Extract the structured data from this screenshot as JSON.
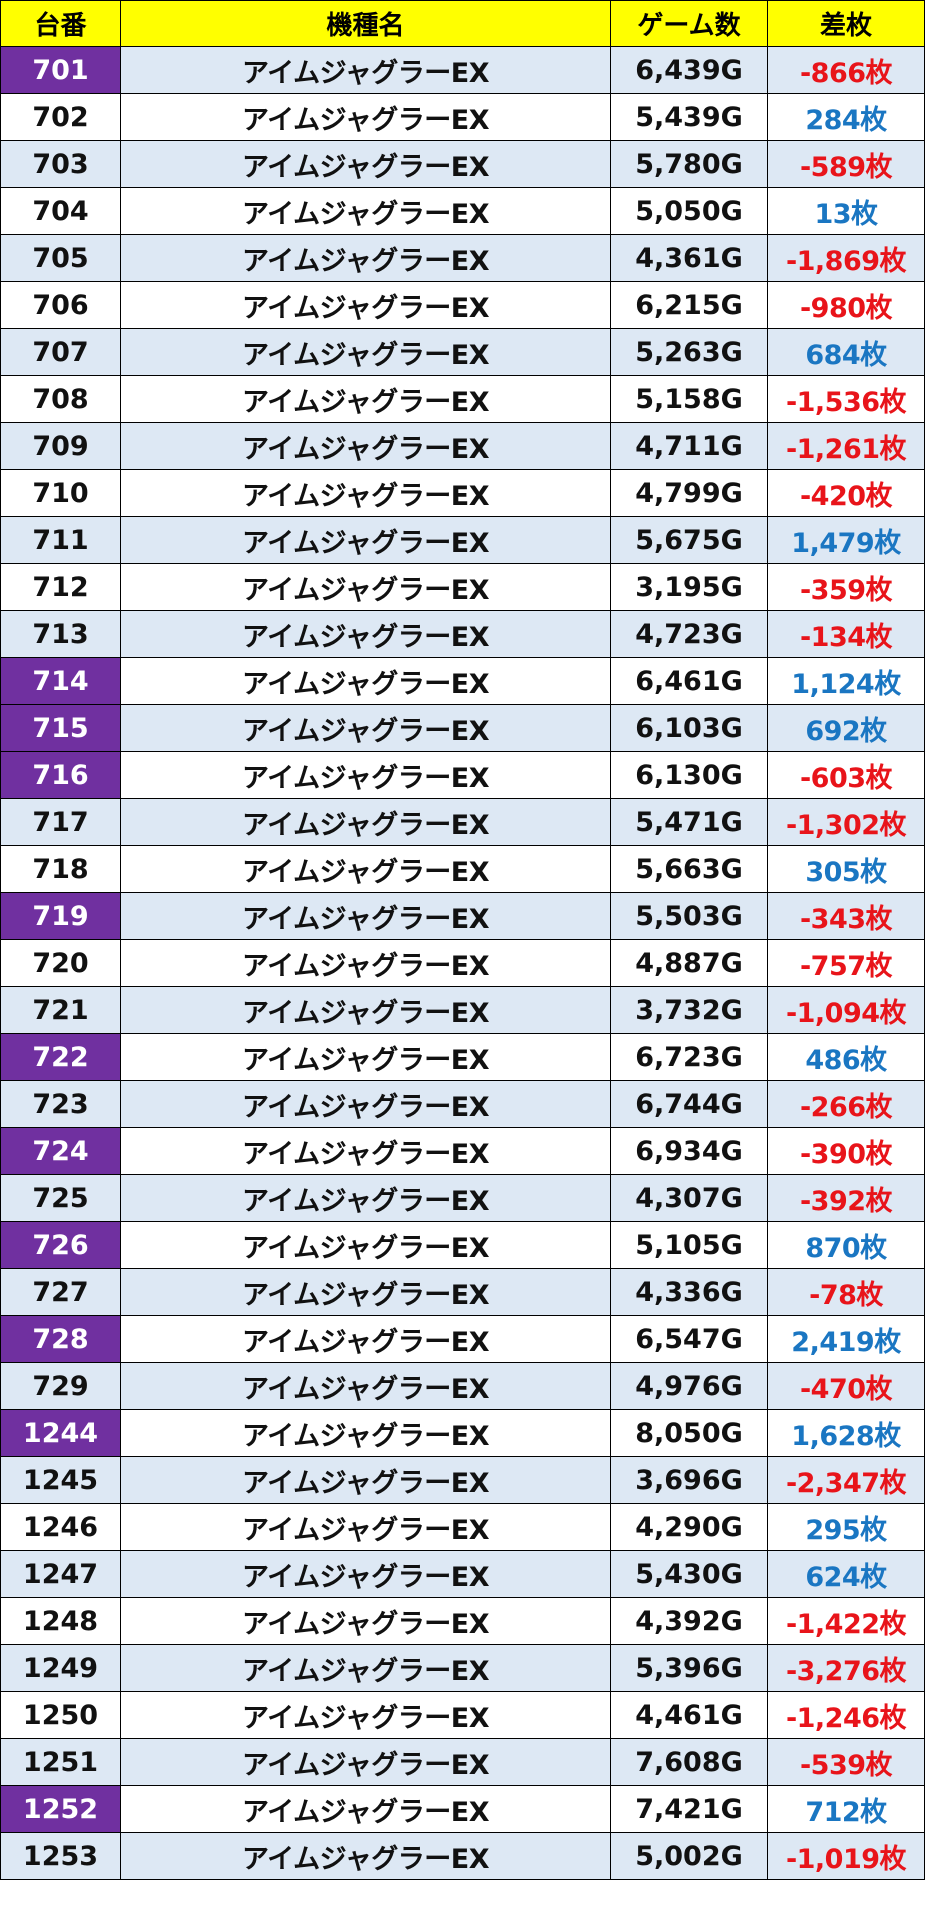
{
  "headers": {
    "machine_no": "台番",
    "model": "機種名",
    "games": "ゲーム数",
    "diff": "差枚"
  },
  "colors": {
    "header_bg": "#ffff00",
    "row_alt_bg": "#dde8f4",
    "highlight_bg": "#7030a0",
    "positive": "#1a76c2",
    "negative": "#e8141a"
  },
  "rows": [
    {
      "no": "701",
      "model": "アイムジャグラーEX",
      "games": "6,439G",
      "diff": "-866枚",
      "highlight": true
    },
    {
      "no": "702",
      "model": "アイムジャグラーEX",
      "games": "5,439G",
      "diff": "284枚",
      "highlight": false
    },
    {
      "no": "703",
      "model": "アイムジャグラーEX",
      "games": "5,780G",
      "diff": "-589枚",
      "highlight": false
    },
    {
      "no": "704",
      "model": "アイムジャグラーEX",
      "games": "5,050G",
      "diff": "13枚",
      "highlight": false
    },
    {
      "no": "705",
      "model": "アイムジャグラーEX",
      "games": "4,361G",
      "diff": "-1,869枚",
      "highlight": false
    },
    {
      "no": "706",
      "model": "アイムジャグラーEX",
      "games": "6,215G",
      "diff": "-980枚",
      "highlight": false
    },
    {
      "no": "707",
      "model": "アイムジャグラーEX",
      "games": "5,263G",
      "diff": "684枚",
      "highlight": false
    },
    {
      "no": "708",
      "model": "アイムジャグラーEX",
      "games": "5,158G",
      "diff": "-1,536枚",
      "highlight": false
    },
    {
      "no": "709",
      "model": "アイムジャグラーEX",
      "games": "4,711G",
      "diff": "-1,261枚",
      "highlight": false
    },
    {
      "no": "710",
      "model": "アイムジャグラーEX",
      "games": "4,799G",
      "diff": "-420枚",
      "highlight": false
    },
    {
      "no": "711",
      "model": "アイムジャグラーEX",
      "games": "5,675G",
      "diff": "1,479枚",
      "highlight": false
    },
    {
      "no": "712",
      "model": "アイムジャグラーEX",
      "games": "3,195G",
      "diff": "-359枚",
      "highlight": false
    },
    {
      "no": "713",
      "model": "アイムジャグラーEX",
      "games": "4,723G",
      "diff": "-134枚",
      "highlight": false
    },
    {
      "no": "714",
      "model": "アイムジャグラーEX",
      "games": "6,461G",
      "diff": "1,124枚",
      "highlight": true
    },
    {
      "no": "715",
      "model": "アイムジャグラーEX",
      "games": "6,103G",
      "diff": "692枚",
      "highlight": true
    },
    {
      "no": "716",
      "model": "アイムジャグラーEX",
      "games": "6,130G",
      "diff": "-603枚",
      "highlight": true
    },
    {
      "no": "717",
      "model": "アイムジャグラーEX",
      "games": "5,471G",
      "diff": "-1,302枚",
      "highlight": false
    },
    {
      "no": "718",
      "model": "アイムジャグラーEX",
      "games": "5,663G",
      "diff": "305枚",
      "highlight": false
    },
    {
      "no": "719",
      "model": "アイムジャグラーEX",
      "games": "5,503G",
      "diff": "-343枚",
      "highlight": true
    },
    {
      "no": "720",
      "model": "アイムジャグラーEX",
      "games": "4,887G",
      "diff": "-757枚",
      "highlight": false
    },
    {
      "no": "721",
      "model": "アイムジャグラーEX",
      "games": "3,732G",
      "diff": "-1,094枚",
      "highlight": false
    },
    {
      "no": "722",
      "model": "アイムジャグラーEX",
      "games": "6,723G",
      "diff": "486枚",
      "highlight": true
    },
    {
      "no": "723",
      "model": "アイムジャグラーEX",
      "games": "6,744G",
      "diff": "-266枚",
      "highlight": false
    },
    {
      "no": "724",
      "model": "アイムジャグラーEX",
      "games": "6,934G",
      "diff": "-390枚",
      "highlight": true
    },
    {
      "no": "725",
      "model": "アイムジャグラーEX",
      "games": "4,307G",
      "diff": "-392枚",
      "highlight": false
    },
    {
      "no": "726",
      "model": "アイムジャグラーEX",
      "games": "5,105G",
      "diff": "870枚",
      "highlight": true
    },
    {
      "no": "727",
      "model": "アイムジャグラーEX",
      "games": "4,336G",
      "diff": "-78枚",
      "highlight": false
    },
    {
      "no": "728",
      "model": "アイムジャグラーEX",
      "games": "6,547G",
      "diff": "2,419枚",
      "highlight": true
    },
    {
      "no": "729",
      "model": "アイムジャグラーEX",
      "games": "4,976G",
      "diff": "-470枚",
      "highlight": false
    },
    {
      "no": "1244",
      "model": "アイムジャグラーEX",
      "games": "8,050G",
      "diff": "1,628枚",
      "highlight": true
    },
    {
      "no": "1245",
      "model": "アイムジャグラーEX",
      "games": "3,696G",
      "diff": "-2,347枚",
      "highlight": false
    },
    {
      "no": "1246",
      "model": "アイムジャグラーEX",
      "games": "4,290G",
      "diff": "295枚",
      "highlight": false
    },
    {
      "no": "1247",
      "model": "アイムジャグラーEX",
      "games": "5,430G",
      "diff": "624枚",
      "highlight": false
    },
    {
      "no": "1248",
      "model": "アイムジャグラーEX",
      "games": "4,392G",
      "diff": "-1,422枚",
      "highlight": false
    },
    {
      "no": "1249",
      "model": "アイムジャグラーEX",
      "games": "5,396G",
      "diff": "-3,276枚",
      "highlight": false
    },
    {
      "no": "1250",
      "model": "アイムジャグラーEX",
      "games": "4,461G",
      "diff": "-1,246枚",
      "highlight": false
    },
    {
      "no": "1251",
      "model": "アイムジャグラーEX",
      "games": "7,608G",
      "diff": "-539枚",
      "highlight": false
    },
    {
      "no": "1252",
      "model": "アイムジャグラーEX",
      "games": "7,421G",
      "diff": "712枚",
      "highlight": true
    },
    {
      "no": "1253",
      "model": "アイムジャグラーEX",
      "games": "5,002G",
      "diff": "-1,019枚",
      "highlight": false
    }
  ]
}
